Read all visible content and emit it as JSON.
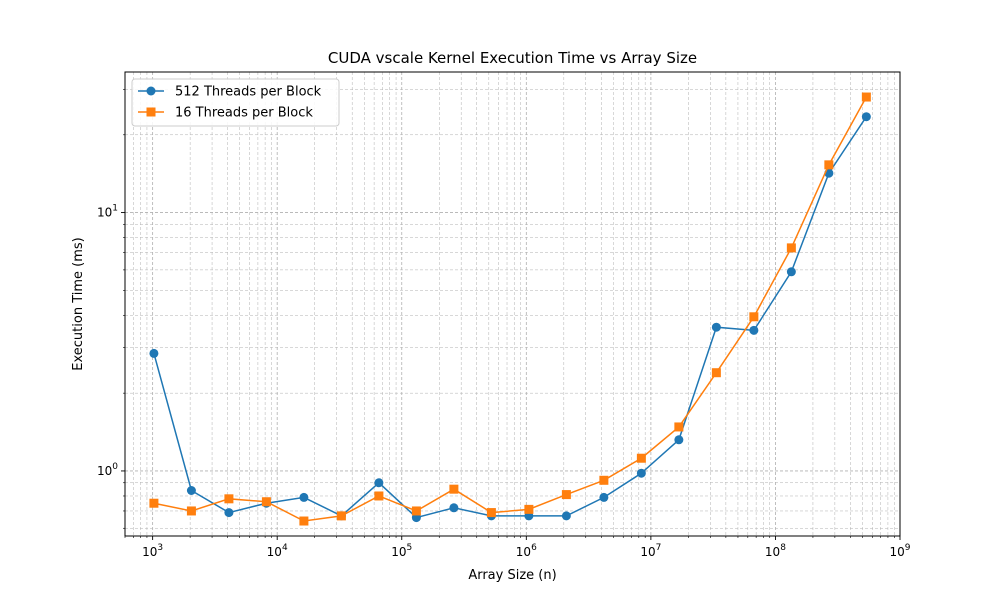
{
  "chart_data": {
    "type": "line",
    "title": "CUDA vscale Kernel Execution Time vs Array Size",
    "xlabel": "Array Size (n)",
    "ylabel": "Execution Time (ms)",
    "xscale": "log",
    "yscale": "log",
    "xlim": [
      600,
      1000000000
    ],
    "ylim": [
      0.56,
      35
    ],
    "grid": true,
    "legend_position": "top-left",
    "x_ticks": [
      {
        "value": 1000,
        "base": "10",
        "exp": "3"
      },
      {
        "value": 10000,
        "base": "10",
        "exp": "4"
      },
      {
        "value": 100000,
        "base": "10",
        "exp": "5"
      },
      {
        "value": 1000000,
        "base": "10",
        "exp": "6"
      },
      {
        "value": 10000000,
        "base": "10",
        "exp": "7"
      },
      {
        "value": 100000000,
        "base": "10",
        "exp": "8"
      },
      {
        "value": 1000000000,
        "base": "10",
        "exp": "9"
      }
    ],
    "y_ticks": [
      {
        "value": 1,
        "base": "10",
        "exp": "0"
      },
      {
        "value": 10,
        "base": "10",
        "exp": "1"
      }
    ],
    "x": [
      1024,
      2048,
      4096,
      8192,
      16384,
      32768,
      65536,
      131072,
      262144,
      524288,
      1048576,
      2097152,
      4194304,
      8388608,
      16777216,
      33554432,
      67108864,
      134217728,
      268435456,
      536870912
    ],
    "series": [
      {
        "name": "512 Threads per Block",
        "color": "#1f77b4",
        "marker": "circle",
        "values": [
          2.85,
          0.84,
          0.69,
          0.75,
          0.79,
          0.67,
          0.9,
          0.66,
          0.72,
          0.67,
          0.67,
          0.67,
          0.79,
          0.98,
          1.32,
          3.6,
          3.5,
          5.9,
          14.2,
          23.5
        ]
      },
      {
        "name": "16 Threads per Block",
        "color": "#ff7f0e",
        "marker": "square",
        "values": [
          0.75,
          0.7,
          0.78,
          0.76,
          0.64,
          0.67,
          0.8,
          0.7,
          0.85,
          0.69,
          0.71,
          0.81,
          0.92,
          1.12,
          1.48,
          2.4,
          3.95,
          7.3,
          15.3,
          28.0
        ]
      }
    ]
  }
}
